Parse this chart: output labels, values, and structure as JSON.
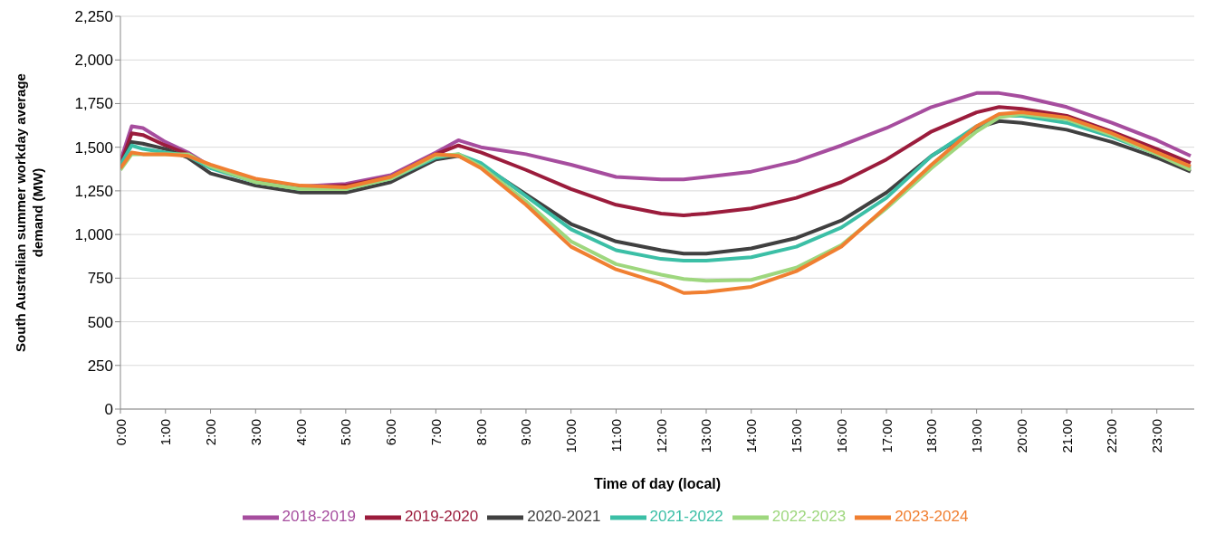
{
  "chart_data": {
    "type": "line",
    "xlabel": "Time of day (local)",
    "ylabel": "South Australian summer workday average demand (MW)",
    "x": [
      0,
      0.25,
      0.5,
      1,
      1.5,
      2,
      3,
      4,
      5,
      6,
      7,
      7.5,
      8,
      9,
      10,
      11,
      12,
      12.5,
      13,
      14,
      15,
      16,
      17,
      18,
      19,
      19.5,
      20,
      21,
      22,
      23,
      23.75
    ],
    "series": [
      {
        "name": "2018-2019",
        "color": "#a64d9e",
        "values": [
          1420,
          1620,
          1610,
          1530,
          1470,
          1390,
          1310,
          1275,
          1290,
          1340,
          1470,
          1540,
          1500,
          1460,
          1400,
          1330,
          1315,
          1315,
          1330,
          1360,
          1420,
          1510,
          1610,
          1730,
          1810,
          1810,
          1790,
          1730,
          1640,
          1540,
          1450
        ]
      },
      {
        "name": "2019-2020",
        "color": "#9b1c3c",
        "values": [
          1400,
          1580,
          1570,
          1510,
          1460,
          1390,
          1310,
          1270,
          1280,
          1330,
          1460,
          1510,
          1470,
          1370,
          1260,
          1170,
          1120,
          1110,
          1120,
          1150,
          1210,
          1300,
          1430,
          1590,
          1700,
          1730,
          1720,
          1680,
          1590,
          1490,
          1410
        ]
      },
      {
        "name": "2020-2021",
        "color": "#404040",
        "values": [
          1390,
          1530,
          1520,
          1490,
          1440,
          1350,
          1280,
          1240,
          1240,
          1300,
          1430,
          1450,
          1400,
          1230,
          1060,
          960,
          910,
          890,
          890,
          920,
          980,
          1080,
          1240,
          1450,
          1610,
          1650,
          1640,
          1600,
          1530,
          1440,
          1360
        ]
      },
      {
        "name": "2021-2022",
        "color": "#3bbfa6",
        "values": [
          1400,
          1510,
          1490,
          1470,
          1450,
          1380,
          1300,
          1260,
          1260,
          1320,
          1440,
          1460,
          1410,
          1220,
          1030,
          910,
          860,
          850,
          850,
          870,
          930,
          1040,
          1210,
          1450,
          1620,
          1680,
          1680,
          1640,
          1560,
          1460,
          1380
        ]
      },
      {
        "name": "2022-2023",
        "color": "#9ed77e",
        "values": [
          1370,
          1460,
          1460,
          1460,
          1460,
          1390,
          1300,
          1260,
          1260,
          1320,
          1450,
          1460,
          1390,
          1190,
          960,
          830,
          770,
          745,
          735,
          740,
          810,
          940,
          1150,
          1380,
          1590,
          1670,
          1690,
          1660,
          1570,
          1460,
          1370
        ]
      },
      {
        "name": "2023-2024",
        "color": "#f07f31",
        "values": [
          1380,
          1470,
          1460,
          1460,
          1450,
          1400,
          1320,
          1280,
          1270,
          1330,
          1460,
          1450,
          1380,
          1170,
          930,
          800,
          720,
          665,
          670,
          700,
          790,
          930,
          1160,
          1400,
          1620,
          1690,
          1700,
          1670,
          1580,
          1470,
          1390
        ]
      }
    ],
    "xlim": [
      0,
      23.83
    ],
    "xticks": [
      {
        "value": 0,
        "label": "0:00"
      },
      {
        "value": 1,
        "label": "1:00"
      },
      {
        "value": 2,
        "label": "2:00"
      },
      {
        "value": 3,
        "label": "3:00"
      },
      {
        "value": 4,
        "label": "4:00"
      },
      {
        "value": 5,
        "label": "5:00"
      },
      {
        "value": 6,
        "label": "6:00"
      },
      {
        "value": 7,
        "label": "7:00"
      },
      {
        "value": 8,
        "label": "8:00"
      },
      {
        "value": 9,
        "label": "9:00"
      },
      {
        "value": 10,
        "label": "10:00"
      },
      {
        "value": 11,
        "label": "11:00"
      },
      {
        "value": 12,
        "label": "12:00"
      },
      {
        "value": 13,
        "label": "13:00"
      },
      {
        "value": 14,
        "label": "14:00"
      },
      {
        "value": 15,
        "label": "15:00"
      },
      {
        "value": 16,
        "label": "16:00"
      },
      {
        "value": 17,
        "label": "17:00"
      },
      {
        "value": 18,
        "label": "18:00"
      },
      {
        "value": 19,
        "label": "19:00"
      },
      {
        "value": 20,
        "label": "20:00"
      },
      {
        "value": 21,
        "label": "21:00"
      },
      {
        "value": 22,
        "label": "22:00"
      },
      {
        "value": 23,
        "label": "23:00"
      }
    ],
    "ylim": [
      0,
      2250
    ],
    "yticks": [
      0,
      250,
      500,
      750,
      {
        "value": 1000,
        "label": "1,000"
      },
      {
        "value": 1250,
        "label": "1,250"
      },
      {
        "value": 1500,
        "label": "1,500"
      },
      {
        "value": 1750,
        "label": "1,750"
      },
      {
        "value": 2000,
        "label": "2,000"
      },
      {
        "value": 2250,
        "label": "2,250"
      }
    ],
    "grid": "y",
    "legend": "bottom",
    "marker": "none",
    "line_style": "solid"
  }
}
